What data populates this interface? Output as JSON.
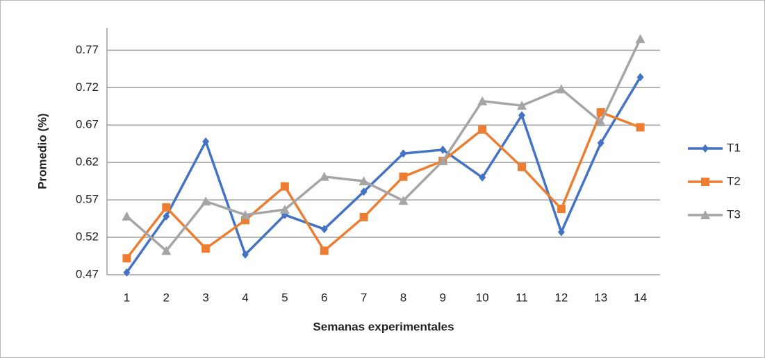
{
  "chart_data": {
    "type": "line",
    "x_label": "Semanas experimentales",
    "y_label": "Promedio (%)",
    "categories": [
      "1",
      "2",
      "3",
      "4",
      "5",
      "6",
      "7",
      "8",
      "9",
      "10",
      "11",
      "12",
      "13",
      "14"
    ],
    "series": [
      {
        "name": "T1",
        "color": "#4472c4",
        "marker": "diamond",
        "values": [
          0.473,
          0.548,
          0.648,
          0.497,
          0.55,
          0.531,
          0.581,
          0.632,
          0.637,
          0.6,
          0.683,
          0.527,
          0.646,
          0.734
        ]
      },
      {
        "name": "T2",
        "color": "#ed7d31",
        "marker": "square",
        "values": [
          0.492,
          0.56,
          0.505,
          0.543,
          0.588,
          0.502,
          0.547,
          0.601,
          0.622,
          0.664,
          0.614,
          0.558,
          0.687,
          0.667
        ]
      },
      {
        "name": "T3",
        "color": "#a5a5a5",
        "marker": "triangle",
        "values": [
          0.548,
          0.502,
          0.568,
          0.55,
          0.557,
          0.601,
          0.595,
          0.569,
          0.622,
          0.702,
          0.696,
          0.718,
          0.674,
          0.785
        ]
      }
    ],
    "ylim": [
      0.47,
      0.8
    ],
    "yticks": [
      0.47,
      0.52,
      0.57,
      0.62,
      0.67,
      0.72,
      0.77
    ],
    "grid": true,
    "legend": "right"
  }
}
